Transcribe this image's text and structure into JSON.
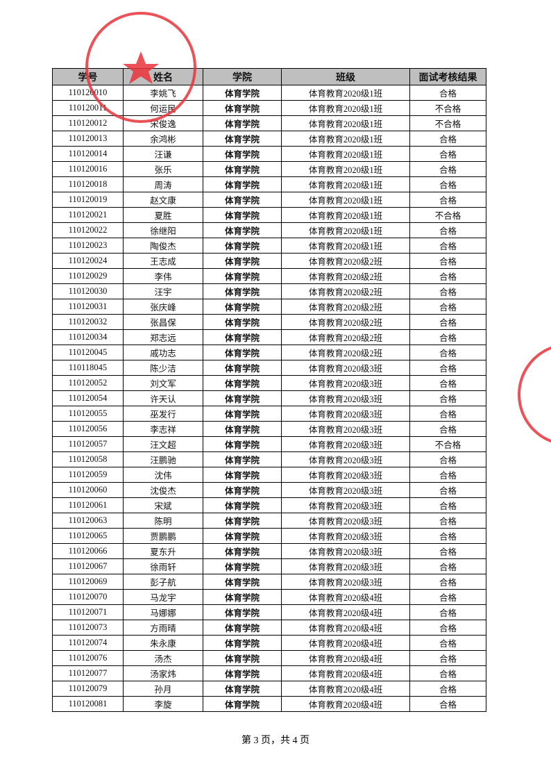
{
  "table": {
    "header": [
      "学号",
      "姓名",
      "学院",
      "班级",
      "面试考核结果"
    ],
    "rows": [
      [
        "110120010",
        "李姚飞",
        "体育学院",
        "体育教育2020级1班",
        "合格"
      ],
      [
        "110120011",
        "何运民",
        "体育学院",
        "体育教育2020级1班",
        "不合格"
      ],
      [
        "110120012",
        "宋俊逸",
        "体育学院",
        "体育教育2020级1班",
        "不合格"
      ],
      [
        "110120013",
        "余鸿彬",
        "体育学院",
        "体育教育2020级1班",
        "合格"
      ],
      [
        "110120014",
        "汪谦",
        "体育学院",
        "体育教育2020级1班",
        "合格"
      ],
      [
        "110120016",
        "张乐",
        "体育学院",
        "体育教育2020级1班",
        "合格"
      ],
      [
        "110120018",
        "周涛",
        "体育学院",
        "体育教育2020级1班",
        "合格"
      ],
      [
        "110120019",
        "赵文康",
        "体育学院",
        "体育教育2020级1班",
        "合格"
      ],
      [
        "110120021",
        "夏胜",
        "体育学院",
        "体育教育2020级1班",
        "不合格"
      ],
      [
        "110120022",
        "徐继阳",
        "体育学院",
        "体育教育2020级1班",
        "合格"
      ],
      [
        "110120023",
        "陶俊杰",
        "体育学院",
        "体育教育2020级1班",
        "合格"
      ],
      [
        "110120024",
        "王志成",
        "体育学院",
        "体育教育2020级2班",
        "合格"
      ],
      [
        "110120029",
        "李伟",
        "体育学院",
        "体育教育2020级2班",
        "合格"
      ],
      [
        "110120030",
        "汪宇",
        "体育学院",
        "体育教育2020级2班",
        "合格"
      ],
      [
        "110120031",
        "张庆峰",
        "体育学院",
        "体育教育2020级2班",
        "合格"
      ],
      [
        "110120032",
        "张昌保",
        "体育学院",
        "体育教育2020级2班",
        "合格"
      ],
      [
        "110120034",
        "郑志远",
        "体育学院",
        "体育教育2020级2班",
        "合格"
      ],
      [
        "110120045",
        "戚功志",
        "体育学院",
        "体育教育2020级2班",
        "合格"
      ],
      [
        "110118045",
        "陈少洁",
        "体育学院",
        "体育教育2020级3班",
        "合格"
      ],
      [
        "110120052",
        "刘文军",
        "体育学院",
        "体育教育2020级3班",
        "合格"
      ],
      [
        "110120054",
        "许天认",
        "体育学院",
        "体育教育2020级3班",
        "合格"
      ],
      [
        "110120055",
        "巫发行",
        "体育学院",
        "体育教育2020级3班",
        "合格"
      ],
      [
        "110120056",
        "李志祥",
        "体育学院",
        "体育教育2020级3班",
        "合格"
      ],
      [
        "110120057",
        "汪文超",
        "体育学院",
        "体育教育2020级3班",
        "不合格"
      ],
      [
        "110120058",
        "汪鹏驰",
        "体育学院",
        "体育教育2020级3班",
        "合格"
      ],
      [
        "110120059",
        "沈伟",
        "体育学院",
        "体育教育2020级3班",
        "合格"
      ],
      [
        "110120060",
        "沈俊杰",
        "体育学院",
        "体育教育2020级3班",
        "合格"
      ],
      [
        "110120061",
        "宋斌",
        "体育学院",
        "体育教育2020级3班",
        "合格"
      ],
      [
        "110120063",
        "陈明",
        "体育学院",
        "体育教育2020级3班",
        "合格"
      ],
      [
        "110120065",
        "贾鹏鹏",
        "体育学院",
        "体育教育2020级3班",
        "合格"
      ],
      [
        "110120066",
        "夏东升",
        "体育学院",
        "体育教育2020级3班",
        "合格"
      ],
      [
        "110120067",
        "徐雨轩",
        "体育学院",
        "体育教育2020级3班",
        "合格"
      ],
      [
        "110120069",
        "彭子航",
        "体育学院",
        "体育教育2020级3班",
        "合格"
      ],
      [
        "110120070",
        "马龙宇",
        "体育学院",
        "体育教育2020级4班",
        "合格"
      ],
      [
        "110120071",
        "马娜娜",
        "体育学院",
        "体育教育2020级4班",
        "合格"
      ],
      [
        "110120073",
        "方雨晴",
        "体育学院",
        "体育教育2020级4班",
        "合格"
      ],
      [
        "110120074",
        "朱永康",
        "体育学院",
        "体育教育2020级4班",
        "合格"
      ],
      [
        "110120076",
        "汤杰",
        "体育学院",
        "体育教育2020级4班",
        "合格"
      ],
      [
        "110120077",
        "汤家炜",
        "体育学院",
        "体育教育2020级4班",
        "合格"
      ],
      [
        "110120079",
        "孙月",
        "体育学院",
        "体育教育2020级4班",
        "合格"
      ],
      [
        "110120081",
        "李旋",
        "体育学院",
        "体育教育2020级4班",
        "合格"
      ]
    ]
  },
  "footer": "第 3 页，共 4 页"
}
